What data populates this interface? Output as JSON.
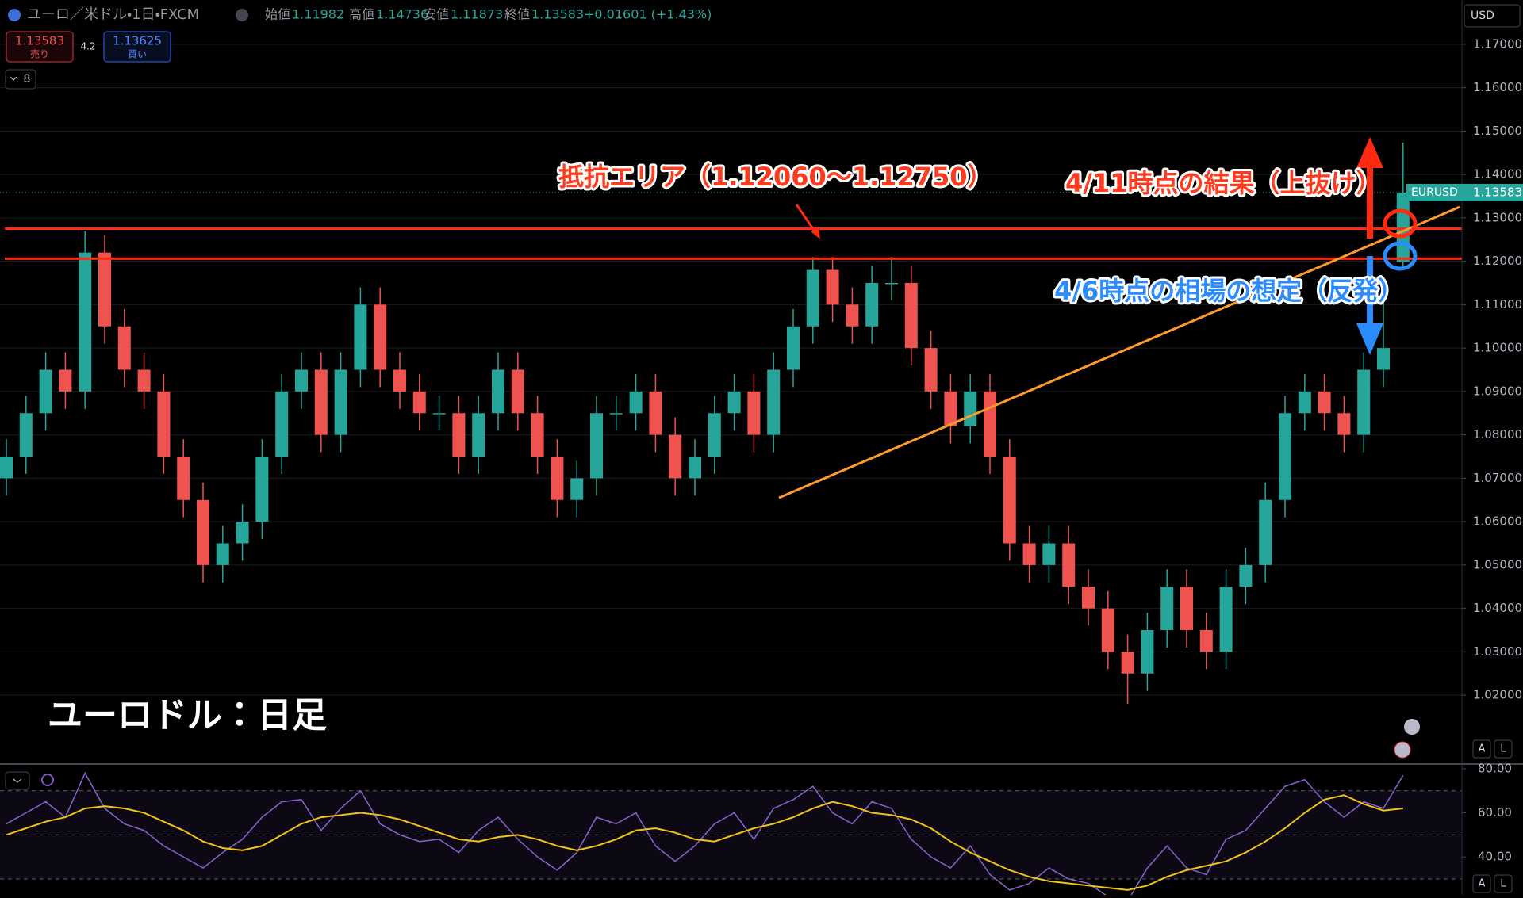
{
  "header": {
    "symbol": "ユーロ／米ドル・1日・FXCM",
    "open_label": "始値",
    "high_label": "高値",
    "low_label": "安値",
    "close_label": "終値",
    "change": "+0.01601 (+1.43%)",
    "sell_price": 1.13583,
    "sell_label": "売り",
    "spread": 4.2,
    "buy_price": 1.13625,
    "buy_label": "買い",
    "indicators_count": 8,
    "currency": "USD",
    "ticker_tag": "EURUSD",
    "scale_buttons": [
      "A",
      "L"
    ]
  },
  "chart_data": [
    {
      "type": "candlestick",
      "title": "ユーロドル：日足",
      "up_color": "#26a69a",
      "down_color": "#ef5350",
      "open": [
        1.07,
        1.075,
        1.085,
        1.095,
        1.09,
        1.122,
        1.105,
        1.095,
        1.09,
        1.075,
        1.065,
        1.05,
        1.055,
        1.06,
        1.075,
        1.09,
        1.095,
        1.08,
        1.095,
        1.11,
        1.095,
        1.09,
        1.085,
        1.085,
        1.075,
        1.085,
        1.095,
        1.085,
        1.075,
        1.065,
        1.07,
        1.085,
        1.085,
        1.09,
        1.08,
        1.07,
        1.075,
        1.085,
        1.09,
        1.08,
        1.095,
        1.105,
        1.118,
        1.11,
        1.105,
        1.115,
        1.115,
        1.1,
        1.09,
        1.082,
        1.09,
        1.075,
        1.055,
        1.05,
        1.055,
        1.045,
        1.04,
        1.03,
        1.025,
        1.035,
        1.045,
        1.035,
        1.03,
        1.045,
        1.05,
        1.065,
        1.085,
        1.09,
        1.085,
        1.08,
        1.095,
        1.11982
      ],
      "high": [
        1.079,
        1.089,
        1.099,
        1.099,
        1.127,
        1.126,
        1.109,
        1.099,
        1.094,
        1.079,
        1.069,
        1.059,
        1.064,
        1.079,
        1.094,
        1.099,
        1.099,
        1.099,
        1.114,
        1.114,
        1.099,
        1.094,
        1.089,
        1.089,
        1.089,
        1.099,
        1.099,
        1.089,
        1.079,
        1.074,
        1.089,
        1.089,
        1.094,
        1.094,
        1.084,
        1.079,
        1.089,
        1.094,
        1.094,
        1.099,
        1.109,
        1.121,
        1.121,
        1.114,
        1.119,
        1.121,
        1.119,
        1.104,
        1.094,
        1.094,
        1.094,
        1.079,
        1.059,
        1.059,
        1.059,
        1.049,
        1.044,
        1.034,
        1.039,
        1.049,
        1.049,
        1.039,
        1.049,
        1.054,
        1.069,
        1.089,
        1.094,
        1.094,
        1.089,
        1.099,
        1.115,
        1.14736
      ],
      "low": [
        1.066,
        1.071,
        1.081,
        1.086,
        1.086,
        1.101,
        1.091,
        1.086,
        1.071,
        1.061,
        1.046,
        1.046,
        1.051,
        1.056,
        1.071,
        1.086,
        1.076,
        1.076,
        1.091,
        1.091,
        1.086,
        1.081,
        1.081,
        1.071,
        1.071,
        1.081,
        1.081,
        1.071,
        1.061,
        1.061,
        1.066,
        1.081,
        1.081,
        1.076,
        1.066,
        1.066,
        1.071,
        1.081,
        1.076,
        1.076,
        1.091,
        1.101,
        1.106,
        1.101,
        1.101,
        1.111,
        1.096,
        1.086,
        1.078,
        1.078,
        1.071,
        1.051,
        1.046,
        1.046,
        1.041,
        1.036,
        1.026,
        1.018,
        1.021,
        1.031,
        1.031,
        1.026,
        1.026,
        1.041,
        1.046,
        1.061,
        1.081,
        1.081,
        1.076,
        1.076,
        1.091,
        1.11873
      ],
      "close": [
        1.075,
        1.085,
        1.095,
        1.09,
        1.122,
        1.105,
        1.095,
        1.09,
        1.075,
        1.065,
        1.05,
        1.055,
        1.06,
        1.075,
        1.09,
        1.095,
        1.08,
        1.095,
        1.11,
        1.095,
        1.09,
        1.085,
        1.085,
        1.075,
        1.085,
        1.095,
        1.085,
        1.075,
        1.065,
        1.07,
        1.085,
        1.085,
        1.09,
        1.08,
        1.07,
        1.075,
        1.085,
        1.09,
        1.08,
        1.095,
        1.105,
        1.118,
        1.11,
        1.105,
        1.115,
        1.115,
        1.1,
        1.09,
        1.082,
        1.09,
        1.075,
        1.055,
        1.05,
        1.055,
        1.045,
        1.04,
        1.03,
        1.025,
        1.035,
        1.045,
        1.035,
        1.03,
        1.045,
        1.05,
        1.065,
        1.085,
        1.09,
        1.085,
        1.08,
        1.095,
        1.1,
        1.13583
      ],
      "ylim": [
        1.0045,
        1.1802
      ],
      "yticks": [
        {
          "value": 1.02,
          "label": "1.02000"
        },
        {
          "value": 1.03,
          "label": "1.03000"
        },
        {
          "value": 1.04,
          "label": "1.04000"
        },
        {
          "value": 1.05,
          "label": "1.05000"
        },
        {
          "value": 1.06,
          "label": "1.06000"
        },
        {
          "value": 1.07,
          "label": "1.07000"
        },
        {
          "value": 1.08,
          "label": "1.08000"
        },
        {
          "value": 1.09,
          "label": "1.09000"
        },
        {
          "value": 1.1,
          "label": "1.10000"
        },
        {
          "value": 1.11,
          "label": "1.11000"
        },
        {
          "value": 1.12,
          "label": "1.12000"
        },
        {
          "value": 1.13,
          "label": "1.13000"
        },
        {
          "value": 1.14,
          "label": "1.14000"
        },
        {
          "value": 1.15,
          "label": "1.15000"
        },
        {
          "value": 1.16,
          "label": "1.16000"
        },
        {
          "value": 1.17,
          "label": "1.17000"
        }
      ],
      "grid": true,
      "levels": [
        1.1275,
        1.1206
      ],
      "level_color": "#ff2a0f",
      "trend_line": [
        1.0655,
        1.1325
      ],
      "trend_color": "#ff9a2e",
      "annotations": [
        {
          "text": "抵抗エリア（1.12060～1.12750）",
          "color": "#ff3b1f"
        },
        {
          "text": "4/11時点の結果（上抜け）",
          "color": "#ff3b1f"
        },
        {
          "text": "4/6時点の相場の想定（反発）",
          "color": "#2b8cff"
        }
      ]
    },
    {
      "type": "line",
      "series": [
        {
          "color": "#8a63d2",
          "values": [
            55,
            60,
            65,
            58,
            78,
            62,
            55,
            52,
            45,
            40,
            35,
            42,
            48,
            58,
            65,
            66,
            52,
            62,
            70,
            55,
            50,
            47,
            48,
            42,
            52,
            58,
            48,
            40,
            34,
            42,
            58,
            55,
            60,
            45,
            38,
            45,
            55,
            60,
            48,
            62,
            66,
            72,
            60,
            55,
            65,
            62,
            48,
            40,
            35,
            45,
            32,
            25,
            28,
            35,
            30,
            28,
            22,
            20,
            35,
            45,
            35,
            32,
            48,
            52,
            62,
            72,
            75,
            65,
            58,
            65,
            62,
            77
          ]
        },
        {
          "color": "#f0c419",
          "values": [
            50,
            53,
            56,
            58,
            62,
            63,
            62,
            60,
            56,
            52,
            47,
            44,
            43,
            45,
            50,
            55,
            58,
            59,
            60,
            59,
            57,
            54,
            51,
            48,
            47,
            49,
            50,
            48,
            45,
            43,
            45,
            48,
            52,
            53,
            51,
            48,
            47,
            50,
            53,
            55,
            58,
            62,
            65,
            63,
            60,
            59,
            57,
            53,
            47,
            42,
            38,
            34,
            31,
            29,
            28,
            27,
            26,
            25,
            27,
            31,
            34,
            36,
            38,
            42,
            47,
            53,
            60,
            66,
            68,
            64,
            61,
            62
          ]
        }
      ],
      "ylim": [
        22.8,
        81.4
      ],
      "yticks": [
        {
          "value": 40,
          "label": "40.00"
        },
        {
          "value": 60,
          "label": "60.00"
        },
        {
          "value": 80,
          "label": "80.00"
        }
      ],
      "band_levels": [
        30,
        50,
        70
      ]
    }
  ]
}
